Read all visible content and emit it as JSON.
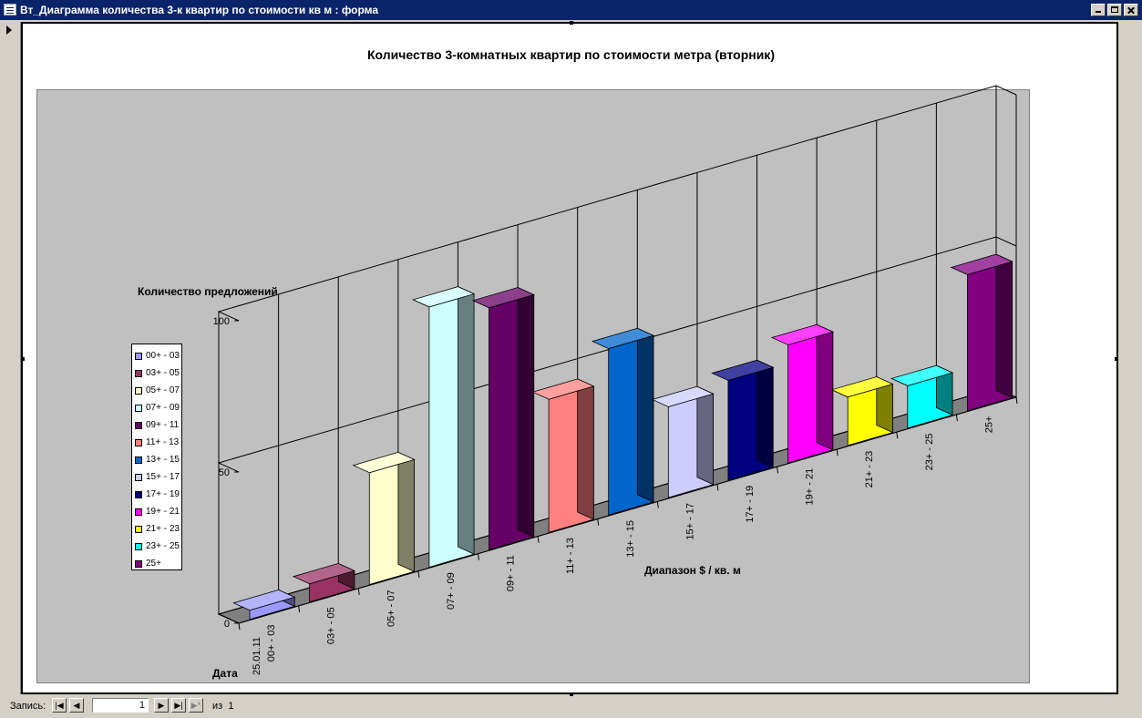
{
  "window": {
    "title": "Вт_Диаграмма количества 3-к квартир по стоимости кв м : форма"
  },
  "chart_data": {
    "type": "bar",
    "title": "Количество 3-комнатных квартир по стоимости метра (вторник)",
    "ylabel": "Количество предложений",
    "xlabel": "Диапазон $ / кв. м",
    "zlabel": "Дата",
    "date": "25.01.11",
    "ylim": [
      0,
      100
    ],
    "yticks": [
      0,
      50,
      100
    ],
    "grid": true,
    "legend_position": "left",
    "categories": [
      "00+ - 03",
      "03+ - 05",
      "05+ - 07",
      "07+ - 09",
      "09+ - 11",
      "11+ - 13",
      "13+ - 15",
      "15+ - 17",
      "17+ - 19",
      "19+ - 21",
      "21+ - 23",
      "23+ - 25",
      "25+"
    ],
    "series": [
      {
        "name": "00+ - 03",
        "value": 3,
        "color": "#9999ff"
      },
      {
        "name": "03+ - 05",
        "value": 6,
        "color": "#993366"
      },
      {
        "name": "05+ - 07",
        "value": 37,
        "color": "#ffffcc"
      },
      {
        "name": "07+ - 09",
        "value": 86,
        "color": "#ccffff"
      },
      {
        "name": "09+ - 11",
        "value": 80,
        "color": "#660066"
      },
      {
        "name": "11+ - 13",
        "value": 44,
        "color": "#ff8080"
      },
      {
        "name": "13+ - 15",
        "value": 55,
        "color": "#0066cc"
      },
      {
        "name": "15+ - 17",
        "value": 30,
        "color": "#ccccff"
      },
      {
        "name": "17+ - 19",
        "value": 33,
        "color": "#000080"
      },
      {
        "name": "19+ - 21",
        "value": 39,
        "color": "#ff00ff"
      },
      {
        "name": "21+ - 23",
        "value": 16,
        "color": "#ffff00"
      },
      {
        "name": "23+ - 25",
        "value": 14,
        "color": "#00ffff"
      },
      {
        "name": "25+",
        "value": 45,
        "color": "#800080"
      }
    ]
  },
  "navigation": {
    "label": "Запись:",
    "current": "1",
    "of_label": "из",
    "total": "1",
    "first": "|◀",
    "prev": "◀",
    "next": "▶",
    "last": "▶|",
    "new": "▶*"
  }
}
